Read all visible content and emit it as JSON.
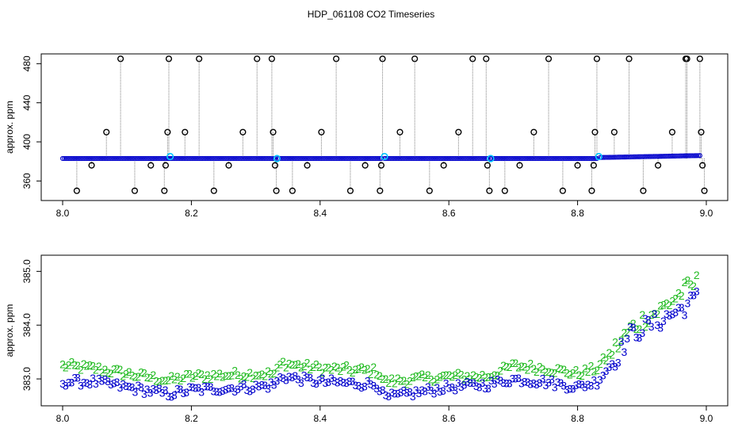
{
  "title": "HDP_061108  CO2 Timeseries",
  "colors": {
    "raw_trace": "#7f7f7f",
    "raw_points": "#0000cc",
    "outliers": "#000000",
    "marker": "#00c8ff",
    "series_2": "#22bb22",
    "series_3": "#0000cc"
  },
  "chart_data": [
    {
      "type": "scatter",
      "panel": "top",
      "xlabel": "",
      "ylabel": "approx. ppm",
      "xlim": [
        8.0,
        9.0
      ],
      "ylim": [
        340,
        490
      ],
      "x_ticks": [
        "8.0",
        "8.2",
        "8.4",
        "8.6",
        "8.8",
        "9.0"
      ],
      "y_ticks": [
        "360",
        "400",
        "440",
        "480"
      ],
      "grid": false,
      "baseline_segments": [
        {
          "x": [
            8.0,
            8.165
          ],
          "y": [
            383,
            383
          ]
        },
        {
          "x": [
            8.165,
            8.33
          ],
          "y": [
            383,
            383
          ]
        },
        {
          "x": [
            8.335,
            8.495
          ],
          "y": [
            383,
            383
          ]
        },
        {
          "x": [
            8.5,
            8.66
          ],
          "y": [
            383,
            383
          ]
        },
        {
          "x": [
            8.665,
            8.83
          ],
          "y": [
            383,
            383
          ]
        },
        {
          "x": [
            8.835,
            8.99
          ],
          "y": [
            384,
            386
          ]
        }
      ],
      "outlier_points": [
        {
          "x": 8.022,
          "y": 350
        },
        {
          "x": 8.045,
          "y": 376
        },
        {
          "x": 8.068,
          "y": 410
        },
        {
          "x": 8.09,
          "y": 485
        },
        {
          "x": 8.112,
          "y": 350
        },
        {
          "x": 8.137,
          "y": 376
        },
        {
          "x": 8.158,
          "y": 350
        },
        {
          "x": 8.16,
          "y": 376
        },
        {
          "x": 8.163,
          "y": 410
        },
        {
          "x": 8.165,
          "y": 485
        },
        {
          "x": 8.19,
          "y": 410
        },
        {
          "x": 8.212,
          "y": 485
        },
        {
          "x": 8.235,
          "y": 350
        },
        {
          "x": 8.258,
          "y": 376
        },
        {
          "x": 8.28,
          "y": 410
        },
        {
          "x": 8.302,
          "y": 485
        },
        {
          "x": 8.325,
          "y": 485
        },
        {
          "x": 8.327,
          "y": 410
        },
        {
          "x": 8.33,
          "y": 376
        },
        {
          "x": 8.332,
          "y": 350
        },
        {
          "x": 8.357,
          "y": 350
        },
        {
          "x": 8.38,
          "y": 376
        },
        {
          "x": 8.402,
          "y": 410
        },
        {
          "x": 8.425,
          "y": 485
        },
        {
          "x": 8.447,
          "y": 350
        },
        {
          "x": 8.47,
          "y": 376
        },
        {
          "x": 8.493,
          "y": 350
        },
        {
          "x": 8.495,
          "y": 376
        },
        {
          "x": 8.497,
          "y": 485
        },
        {
          "x": 8.524,
          "y": 410
        },
        {
          "x": 8.547,
          "y": 485
        },
        {
          "x": 8.57,
          "y": 350
        },
        {
          "x": 8.592,
          "y": 376
        },
        {
          "x": 8.615,
          "y": 410
        },
        {
          "x": 8.637,
          "y": 485
        },
        {
          "x": 8.658,
          "y": 485
        },
        {
          "x": 8.66,
          "y": 376
        },
        {
          "x": 8.663,
          "y": 350
        },
        {
          "x": 8.687,
          "y": 350
        },
        {
          "x": 8.71,
          "y": 376
        },
        {
          "x": 8.732,
          "y": 410
        },
        {
          "x": 8.755,
          "y": 485
        },
        {
          "x": 8.777,
          "y": 350
        },
        {
          "x": 8.8,
          "y": 376
        },
        {
          "x": 8.822,
          "y": 350
        },
        {
          "x": 8.825,
          "y": 376
        },
        {
          "x": 8.827,
          "y": 410
        },
        {
          "x": 8.83,
          "y": 485
        },
        {
          "x": 8.857,
          "y": 410
        },
        {
          "x": 8.88,
          "y": 485
        },
        {
          "x": 8.902,
          "y": 350
        },
        {
          "x": 8.925,
          "y": 376
        },
        {
          "x": 8.947,
          "y": 410
        },
        {
          "x": 8.968,
          "y": 485
        },
        {
          "x": 8.97,
          "y": 485
        },
        {
          "x": 8.99,
          "y": 485
        },
        {
          "x": 8.992,
          "y": 410
        },
        {
          "x": 8.994,
          "y": 376
        },
        {
          "x": 8.997,
          "y": 350
        }
      ],
      "marker_points": [
        {
          "x": 8.167,
          "y": 385
        },
        {
          "x": 8.333,
          "y": 383
        },
        {
          "x": 8.5,
          "y": 385
        },
        {
          "x": 8.665,
          "y": 383
        },
        {
          "x": 8.833,
          "y": 385
        }
      ]
    },
    {
      "type": "scatter",
      "panel": "bottom",
      "xlabel": "",
      "ylabel": "approx. ppm",
      "xlim": [
        8.0,
        9.0
      ],
      "ylim": [
        382.5,
        385.3
      ],
      "x_ticks": [
        "8.0",
        "8.2",
        "8.4",
        "8.6",
        "8.8",
        "9.0"
      ],
      "y_ticks": [
        "383.0",
        "384.0",
        "385.0"
      ],
      "grid": false,
      "series": [
        {
          "name": "2",
          "x_start": 8.0,
          "x_end": 8.985,
          "anchors": [
            [
              8.0,
              383.25
            ],
            [
              8.05,
              383.2
            ],
            [
              8.1,
              383.1
            ],
            [
              8.165,
              382.98
            ],
            [
              8.2,
              383.05
            ],
            [
              8.3,
              383.1
            ],
            [
              8.33,
              383.1
            ],
            [
              8.34,
              383.3
            ],
            [
              8.4,
              383.2
            ],
            [
              8.49,
              383.15
            ],
            [
              8.5,
              382.95
            ],
            [
              8.6,
              383.05
            ],
            [
              8.66,
              383.05
            ],
            [
              8.7,
              383.25
            ],
            [
              8.75,
              383.2
            ],
            [
              8.8,
              383.1
            ],
            [
              8.83,
              383.2
            ],
            [
              8.86,
              383.6
            ],
            [
              8.88,
              383.9
            ],
            [
              8.9,
              384.1
            ],
            [
              8.93,
              384.3
            ],
            [
              8.96,
              384.6
            ],
            [
              8.985,
              384.8
            ]
          ]
        },
        {
          "name": "3",
          "x_start": 8.0,
          "x_end": 8.985,
          "anchors": [
            [
              8.0,
              382.95
            ],
            [
              8.05,
              382.95
            ],
            [
              8.1,
              382.85
            ],
            [
              8.165,
              382.72
            ],
            [
              8.2,
              382.8
            ],
            [
              8.3,
              382.85
            ],
            [
              8.33,
              382.9
            ],
            [
              8.34,
              383.05
            ],
            [
              8.4,
              382.95
            ],
            [
              8.49,
              382.9
            ],
            [
              8.5,
              382.65
            ],
            [
              8.6,
              382.85
            ],
            [
              8.66,
              382.9
            ],
            [
              8.7,
              383.0
            ],
            [
              8.75,
              382.95
            ],
            [
              8.8,
              382.85
            ],
            [
              8.83,
              382.95
            ],
            [
              8.86,
              383.4
            ],
            [
              8.88,
              383.8
            ],
            [
              8.9,
              383.95
            ],
            [
              8.93,
              384.1
            ],
            [
              8.96,
              384.3
            ],
            [
              8.985,
              384.5
            ]
          ]
        }
      ]
    }
  ]
}
